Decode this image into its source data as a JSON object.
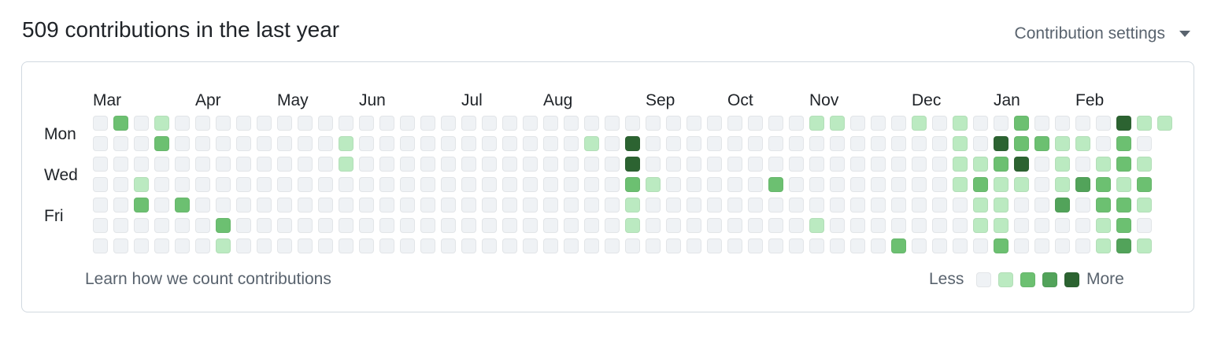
{
  "header": {
    "title": "509 contributions in the last year",
    "settings_label": "Contribution settings"
  },
  "footer": {
    "learn_link": "Learn how we count contributions",
    "less": "Less",
    "more": "More"
  },
  "colors": {
    "level0": "#eff2f5",
    "level1": "#bbeac1",
    "level2": "#6cc071",
    "level3": "#52a35a",
    "level4": "#2c6331"
  },
  "chart_data": {
    "type": "heatmap",
    "months": [
      {
        "label": "Mar",
        "week": 0
      },
      {
        "label": "Apr",
        "week": 5
      },
      {
        "label": "May",
        "week": 9
      },
      {
        "label": "Jun",
        "week": 13
      },
      {
        "label": "Jul",
        "week": 18
      },
      {
        "label": "Aug",
        "week": 22
      },
      {
        "label": "Sep",
        "week": 27
      },
      {
        "label": "Oct",
        "week": 31
      },
      {
        "label": "Nov",
        "week": 35
      },
      {
        "label": "Dec",
        "week": 40
      },
      {
        "label": "Jan",
        "week": 44
      },
      {
        "label": "Feb",
        "week": 48
      }
    ],
    "day_labels": [
      {
        "label": "Mon",
        "row": 1
      },
      {
        "label": "Wed",
        "row": 3
      },
      {
        "label": "Fri",
        "row": 5
      }
    ],
    "levels_by_day": [
      [
        0,
        2,
        0,
        1,
        0,
        0,
        0,
        0,
        0,
        0,
        0,
        0,
        0,
        0,
        0,
        0,
        0,
        0,
        0,
        0,
        0,
        0,
        0,
        0,
        0,
        0,
        0,
        0,
        0,
        0,
        0,
        0,
        0,
        0,
        0,
        1,
        1,
        0,
        0,
        0,
        1,
        0,
        1,
        0,
        0,
        2,
        0,
        0,
        0,
        0,
        4,
        1,
        1
      ],
      [
        0,
        0,
        0,
        2,
        0,
        0,
        0,
        0,
        0,
        0,
        0,
        0,
        1,
        0,
        0,
        0,
        0,
        0,
        0,
        0,
        0,
        0,
        0,
        0,
        1,
        0,
        4,
        0,
        0,
        0,
        0,
        0,
        0,
        0,
        0,
        0,
        0,
        0,
        0,
        0,
        0,
        0,
        1,
        0,
        4,
        2,
        2,
        1,
        1,
        0,
        2,
        0
      ],
      [
        0,
        0,
        0,
        0,
        0,
        0,
        0,
        0,
        0,
        0,
        0,
        0,
        1,
        0,
        0,
        0,
        0,
        0,
        0,
        0,
        0,
        0,
        0,
        0,
        0,
        0,
        4,
        0,
        0,
        0,
        0,
        0,
        0,
        0,
        0,
        0,
        0,
        0,
        0,
        0,
        0,
        0,
        1,
        1,
        2,
        4,
        0,
        1,
        0,
        1,
        2,
        1
      ],
      [
        0,
        0,
        1,
        0,
        0,
        0,
        0,
        0,
        0,
        0,
        0,
        0,
        0,
        0,
        0,
        0,
        0,
        0,
        0,
        0,
        0,
        0,
        0,
        0,
        0,
        0,
        2,
        1,
        0,
        0,
        0,
        0,
        0,
        2,
        0,
        0,
        0,
        0,
        0,
        0,
        0,
        0,
        1,
        2,
        1,
        1,
        0,
        1,
        3,
        2,
        1,
        2
      ],
      [
        0,
        0,
        2,
        0,
        2,
        0,
        0,
        0,
        0,
        0,
        0,
        0,
        0,
        0,
        0,
        0,
        0,
        0,
        0,
        0,
        0,
        0,
        0,
        0,
        0,
        0,
        1,
        0,
        0,
        0,
        0,
        0,
        0,
        0,
        0,
        0,
        0,
        0,
        0,
        0,
        0,
        0,
        0,
        1,
        1,
        0,
        0,
        3,
        0,
        2,
        2,
        1
      ],
      [
        0,
        0,
        0,
        0,
        0,
        0,
        2,
        0,
        0,
        0,
        0,
        0,
        0,
        0,
        0,
        0,
        0,
        0,
        0,
        0,
        0,
        0,
        0,
        0,
        0,
        0,
        1,
        0,
        0,
        0,
        0,
        0,
        0,
        0,
        0,
        1,
        0,
        0,
        0,
        0,
        0,
        0,
        0,
        1,
        1,
        0,
        0,
        0,
        0,
        1,
        2,
        0
      ],
      [
        0,
        0,
        0,
        0,
        0,
        0,
        1,
        0,
        0,
        0,
        0,
        0,
        0,
        0,
        0,
        0,
        0,
        0,
        0,
        0,
        0,
        0,
        0,
        0,
        0,
        0,
        0,
        0,
        0,
        0,
        0,
        0,
        0,
        0,
        0,
        0,
        0,
        0,
        0,
        2,
        0,
        0,
        0,
        0,
        2,
        0,
        0,
        0,
        0,
        1,
        3,
        1
      ]
    ],
    "legend_levels": [
      0,
      1,
      2,
      3,
      4
    ]
  }
}
